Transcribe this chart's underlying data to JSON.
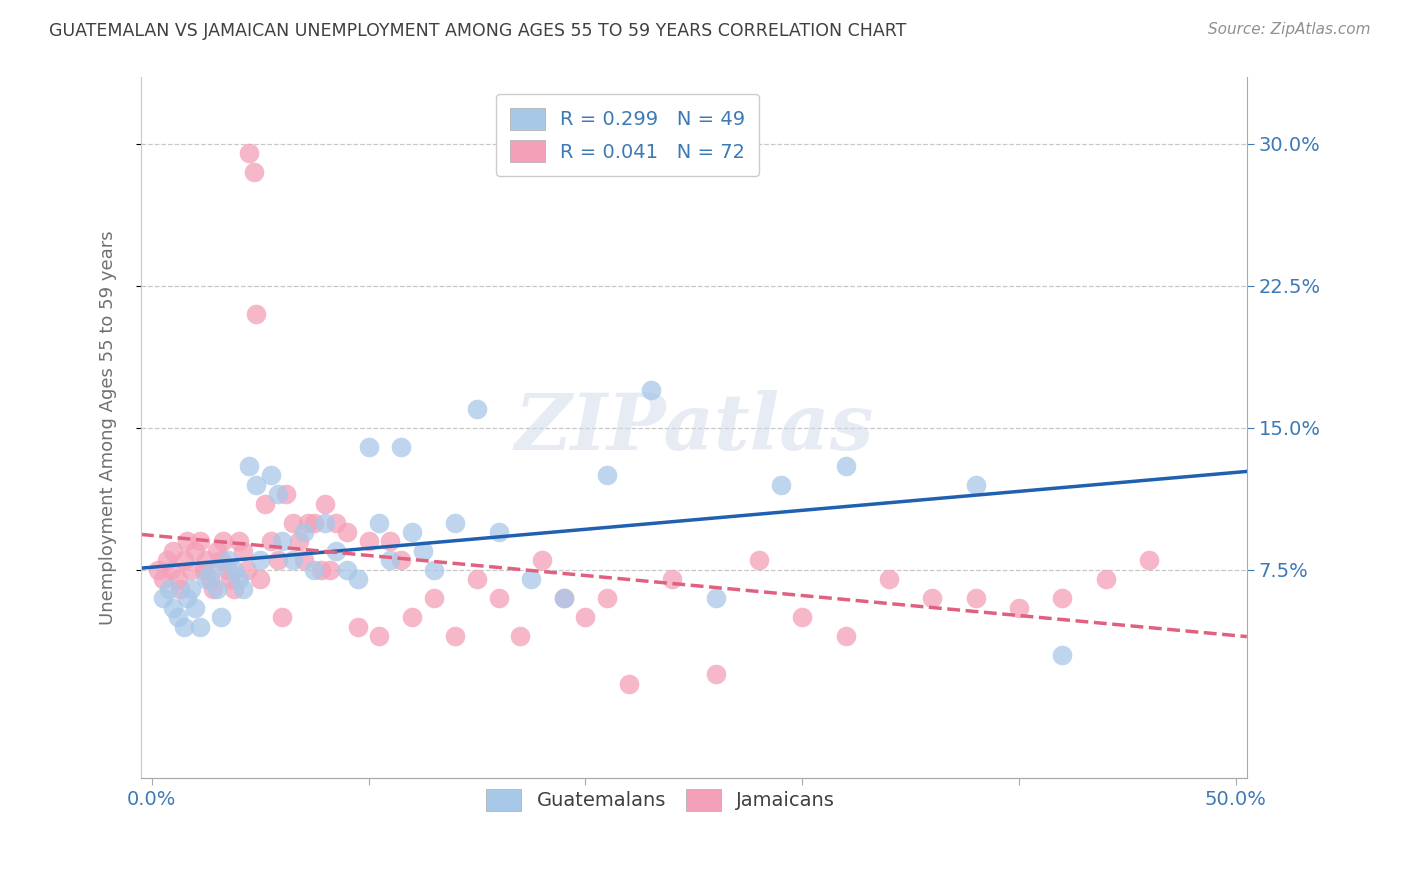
{
  "title": "GUATEMALAN VS JAMAICAN UNEMPLOYMENT AMONG AGES 55 TO 59 YEARS CORRELATION CHART",
  "source": "Source: ZipAtlas.com",
  "ylabel": "Unemployment Among Ages 55 to 59 years",
  "xlabel_vals": [
    0.0,
    0.1,
    0.2,
    0.3,
    0.4,
    0.5
  ],
  "ylabel_vals": [
    0.075,
    0.15,
    0.225,
    0.3
  ],
  "xlim": [
    -0.005,
    0.505
  ],
  "ylim": [
    -0.035,
    0.335
  ],
  "guatemalan_R": 0.299,
  "guatemalan_N": 49,
  "jamaican_R": 0.041,
  "jamaican_N": 72,
  "guatemalan_color": "#a8c8e8",
  "jamaican_color": "#f4a0b8",
  "guatemalan_line_color": "#2060b0",
  "jamaican_line_color": "#e06080",
  "legend_guatemalans": "Guatemalans",
  "legend_jamaicans": "Jamaicans",
  "background_color": "#ffffff",
  "grid_color": "#c8c8c8",
  "watermark": "ZIPatlas",
  "title_color": "#404040",
  "source_color": "#909090",
  "guatemalan_x": [
    0.005,
    0.008,
    0.01,
    0.012,
    0.015,
    0.016,
    0.018,
    0.02,
    0.022,
    0.025,
    0.028,
    0.03,
    0.032,
    0.035,
    0.038,
    0.04,
    0.042,
    0.045,
    0.048,
    0.05,
    0.055,
    0.058,
    0.06,
    0.065,
    0.07,
    0.075,
    0.08,
    0.085,
    0.09,
    0.095,
    0.1,
    0.105,
    0.11,
    0.115,
    0.12,
    0.125,
    0.13,
    0.14,
    0.15,
    0.16,
    0.175,
    0.19,
    0.21,
    0.23,
    0.26,
    0.29,
    0.32,
    0.38,
    0.42
  ],
  "guatemalan_y": [
    0.06,
    0.065,
    0.055,
    0.05,
    0.045,
    0.06,
    0.065,
    0.055,
    0.045,
    0.07,
    0.075,
    0.065,
    0.05,
    0.08,
    0.075,
    0.07,
    0.065,
    0.13,
    0.12,
    0.08,
    0.125,
    0.115,
    0.09,
    0.08,
    0.095,
    0.075,
    0.1,
    0.085,
    0.075,
    0.07,
    0.14,
    0.1,
    0.08,
    0.14,
    0.095,
    0.085,
    0.075,
    0.1,
    0.16,
    0.095,
    0.07,
    0.06,
    0.125,
    0.17,
    0.06,
    0.12,
    0.13,
    0.12,
    0.03
  ],
  "jamaican_x": [
    0.003,
    0.005,
    0.007,
    0.009,
    0.01,
    0.012,
    0.013,
    0.015,
    0.016,
    0.018,
    0.02,
    0.022,
    0.024,
    0.025,
    0.027,
    0.028,
    0.03,
    0.032,
    0.033,
    0.035,
    0.036,
    0.038,
    0.04,
    0.042,
    0.044,
    0.045,
    0.047,
    0.048,
    0.05,
    0.052,
    0.055,
    0.058,
    0.06,
    0.062,
    0.065,
    0.068,
    0.07,
    0.072,
    0.075,
    0.078,
    0.08,
    0.082,
    0.085,
    0.09,
    0.095,
    0.1,
    0.105,
    0.11,
    0.115,
    0.12,
    0.13,
    0.14,
    0.15,
    0.16,
    0.17,
    0.18,
    0.19,
    0.2,
    0.21,
    0.22,
    0.24,
    0.26,
    0.28,
    0.3,
    0.32,
    0.34,
    0.36,
    0.38,
    0.4,
    0.42,
    0.44,
    0.46
  ],
  "jamaican_y": [
    0.075,
    0.07,
    0.08,
    0.075,
    0.085,
    0.07,
    0.065,
    0.08,
    0.09,
    0.075,
    0.085,
    0.09,
    0.075,
    0.08,
    0.07,
    0.065,
    0.085,
    0.08,
    0.09,
    0.075,
    0.07,
    0.065,
    0.09,
    0.085,
    0.075,
    0.295,
    0.285,
    0.21,
    0.07,
    0.11,
    0.09,
    0.08,
    0.05,
    0.115,
    0.1,
    0.09,
    0.08,
    0.1,
    0.1,
    0.075,
    0.11,
    0.075,
    0.1,
    0.095,
    0.045,
    0.09,
    0.04,
    0.09,
    0.08,
    0.05,
    0.06,
    0.04,
    0.07,
    0.06,
    0.04,
    0.08,
    0.06,
    0.05,
    0.06,
    0.015,
    0.07,
    0.02,
    0.08,
    0.05,
    0.04,
    0.07,
    0.06,
    0.06,
    0.055,
    0.06,
    0.07,
    0.08
  ]
}
